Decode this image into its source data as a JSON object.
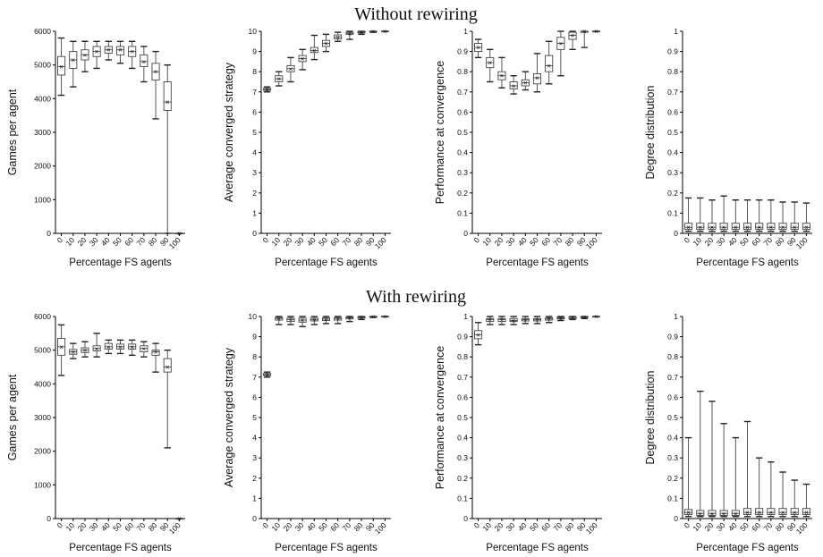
{
  "figure": {
    "section_titles": [
      "Without rewiring",
      "With rewiring"
    ]
  },
  "chart_data": [
    {
      "type": "box",
      "section": "Without rewiring",
      "xlabel": "Percentage FS agents",
      "ylabel": "Games per agent",
      "categories": [
        "0",
        "10",
        "20",
        "30",
        "40",
        "50",
        "60",
        "70",
        "80",
        "90",
        "100"
      ],
      "ylim": [
        0,
        6000
      ],
      "yticks": [
        "0",
        "1000",
        "2000",
        "3000",
        "4000",
        "5000",
        "6000"
      ],
      "boxes": [
        {
          "min": 4100,
          "q1": 4700,
          "median": 4950,
          "q3": 5250,
          "max": 5800,
          "mean": 4950
        },
        {
          "min": 4350,
          "q1": 4900,
          "median": 5150,
          "q3": 5400,
          "max": 5700,
          "mean": 5150
        },
        {
          "min": 4800,
          "q1": 5150,
          "median": 5300,
          "q3": 5450,
          "max": 5700,
          "mean": 5300
        },
        {
          "min": 4900,
          "q1": 5250,
          "median": 5400,
          "q3": 5550,
          "max": 5700,
          "mean": 5400
        },
        {
          "min": 5150,
          "q1": 5350,
          "median": 5450,
          "q3": 5550,
          "max": 5700,
          "mean": 5450
        },
        {
          "min": 5050,
          "q1": 5300,
          "median": 5450,
          "q3": 5550,
          "max": 5700,
          "mean": 5450
        },
        {
          "min": 4900,
          "q1": 5250,
          "median": 5400,
          "q3": 5550,
          "max": 5700,
          "mean": 5400
        },
        {
          "min": 4500,
          "q1": 4950,
          "median": 5100,
          "q3": 5300,
          "max": 5550,
          "mean": 5100
        },
        {
          "min": 3400,
          "q1": 4550,
          "median": 4800,
          "q3": 5050,
          "max": 5400,
          "mean": 4800
        },
        {
          "min": 0,
          "q1": 3650,
          "median": 3900,
          "q3": 4500,
          "max": 5000,
          "mean": 3900
        },
        {
          "min": 0,
          "q1": 0,
          "median": 0,
          "q3": 0,
          "max": 0,
          "mean": 0
        }
      ]
    },
    {
      "type": "box",
      "section": "Without rewiring",
      "xlabel": "Percentage FS agents",
      "ylabel": "Average converged strategy",
      "categories": [
        "0",
        "10",
        "20",
        "30",
        "40",
        "50",
        "60",
        "70",
        "80",
        "90",
        "100"
      ],
      "ylim": [
        0,
        10
      ],
      "yticks": [
        "0",
        "1",
        "2",
        "3",
        "4",
        "5",
        "6",
        "7",
        "8",
        "9",
        "10"
      ],
      "boxes": [
        {
          "min": 7.0,
          "q1": 7.08,
          "median": 7.12,
          "q3": 7.18,
          "max": 7.25,
          "mean": 7.12
        },
        {
          "min": 7.3,
          "q1": 7.5,
          "median": 7.65,
          "q3": 7.8,
          "max": 8.0,
          "mean": 7.65
        },
        {
          "min": 7.5,
          "q1": 8.0,
          "median": 8.15,
          "q3": 8.3,
          "max": 8.7,
          "mean": 8.15
        },
        {
          "min": 8.1,
          "q1": 8.5,
          "median": 8.65,
          "q3": 8.8,
          "max": 9.1,
          "mean": 8.65
        },
        {
          "min": 8.6,
          "q1": 8.95,
          "median": 9.05,
          "q3": 9.2,
          "max": 9.8,
          "mean": 9.05
        },
        {
          "min": 9.0,
          "q1": 9.25,
          "median": 9.4,
          "q3": 9.55,
          "max": 9.85,
          "mean": 9.4
        },
        {
          "min": 9.5,
          "q1": 9.62,
          "median": 9.72,
          "q3": 9.82,
          "max": 9.95,
          "mean": 9.72
        },
        {
          "min": 9.6,
          "q1": 9.85,
          "median": 9.9,
          "q3": 9.95,
          "max": 10.0,
          "mean": 9.9
        },
        {
          "min": 9.85,
          "q1": 9.92,
          "median": 9.95,
          "q3": 9.98,
          "max": 10.0,
          "mean": 9.95
        },
        {
          "min": 9.95,
          "q1": 9.97,
          "median": 9.99,
          "q3": 10.0,
          "max": 10.0,
          "mean": 9.99
        },
        {
          "min": 10.0,
          "q1": 10.0,
          "median": 10.0,
          "q3": 10.0,
          "max": 10.0,
          "mean": 10.0
        }
      ]
    },
    {
      "type": "box",
      "section": "Without rewiring",
      "xlabel": "Percentage FS agents",
      "ylabel": "Performance at convergence",
      "categories": [
        "0",
        "10",
        "20",
        "30",
        "40",
        "50",
        "60",
        "70",
        "80",
        "90",
        "100"
      ],
      "ylim": [
        0,
        1
      ],
      "yticks": [
        "0",
        "0.1",
        "0.2",
        "0.3",
        "0.4",
        "0.5",
        "0.6",
        "0.7",
        "0.8",
        "0.9",
        "1"
      ],
      "boxes": [
        {
          "min": 0.87,
          "q1": 0.9,
          "median": 0.92,
          "q3": 0.94,
          "max": 0.96,
          "mean": 0.92
        },
        {
          "min": 0.75,
          "q1": 0.82,
          "median": 0.845,
          "q3": 0.87,
          "max": 0.91,
          "mean": 0.845
        },
        {
          "min": 0.72,
          "q1": 0.76,
          "median": 0.78,
          "q3": 0.8,
          "max": 0.87,
          "mean": 0.78
        },
        {
          "min": 0.69,
          "q1": 0.715,
          "median": 0.73,
          "q3": 0.75,
          "max": 0.78,
          "mean": 0.73
        },
        {
          "min": 0.71,
          "q1": 0.73,
          "median": 0.745,
          "q3": 0.76,
          "max": 0.8,
          "mean": 0.745
        },
        {
          "min": 0.7,
          "q1": 0.74,
          "median": 0.77,
          "q3": 0.79,
          "max": 0.89,
          "mean": 0.77
        },
        {
          "min": 0.74,
          "q1": 0.8,
          "median": 0.83,
          "q3": 0.88,
          "max": 0.95,
          "mean": 0.83
        },
        {
          "min": 0.78,
          "q1": 0.91,
          "median": 0.94,
          "q3": 0.97,
          "max": 1.0,
          "mean": 0.94
        },
        {
          "min": 0.91,
          "q1": 0.96,
          "median": 0.98,
          "q3": 0.995,
          "max": 1.0,
          "mean": 0.98
        },
        {
          "min": 0.92,
          "q1": 0.995,
          "median": 1.0,
          "q3": 1.0,
          "max": 1.0,
          "mean": 1.0
        },
        {
          "min": 1.0,
          "q1": 1.0,
          "median": 1.0,
          "q3": 1.0,
          "max": 1.0,
          "mean": 1.0
        }
      ]
    },
    {
      "type": "box",
      "section": "Without rewiring",
      "xlabel": "Percentage FS agents",
      "ylabel": "Degree distribution",
      "categories": [
        "0",
        "10",
        "20",
        "30",
        "40",
        "50",
        "60",
        "70",
        "80",
        "90",
        "100"
      ],
      "ylim": [
        0,
        1
      ],
      "yticks": [
        "0",
        "0.1",
        "0.2",
        "0.3",
        "0.4",
        "0.5",
        "0.6",
        "0.7",
        "0.8",
        "0.9",
        "1"
      ],
      "boxes": [
        {
          "min": 0.01,
          "q1": 0.02,
          "median": 0.03,
          "q3": 0.05,
          "max": 0.175,
          "mean": 0.03
        },
        {
          "min": 0.01,
          "q1": 0.02,
          "median": 0.03,
          "q3": 0.05,
          "max": 0.175,
          "mean": 0.03
        },
        {
          "min": 0.01,
          "q1": 0.02,
          "median": 0.03,
          "q3": 0.05,
          "max": 0.165,
          "mean": 0.03
        },
        {
          "min": 0.01,
          "q1": 0.02,
          "median": 0.03,
          "q3": 0.05,
          "max": 0.185,
          "mean": 0.03
        },
        {
          "min": 0.01,
          "q1": 0.02,
          "median": 0.03,
          "q3": 0.05,
          "max": 0.165,
          "mean": 0.03
        },
        {
          "min": 0.01,
          "q1": 0.02,
          "median": 0.03,
          "q3": 0.05,
          "max": 0.165,
          "mean": 0.03
        },
        {
          "min": 0.01,
          "q1": 0.02,
          "median": 0.03,
          "q3": 0.05,
          "max": 0.165,
          "mean": 0.03
        },
        {
          "min": 0.01,
          "q1": 0.02,
          "median": 0.03,
          "q3": 0.05,
          "max": 0.165,
          "mean": 0.03
        },
        {
          "min": 0.01,
          "q1": 0.02,
          "median": 0.03,
          "q3": 0.05,
          "max": 0.155,
          "mean": 0.03
        },
        {
          "min": 0.01,
          "q1": 0.02,
          "median": 0.03,
          "q3": 0.05,
          "max": 0.155,
          "mean": 0.03
        },
        {
          "min": 0.01,
          "q1": 0.02,
          "median": 0.03,
          "q3": 0.05,
          "max": 0.15,
          "mean": 0.03
        }
      ]
    },
    {
      "type": "box",
      "section": "With rewiring",
      "xlabel": "Percentage FS agents",
      "ylabel": "Games per agent",
      "categories": [
        "0",
        "10",
        "20",
        "30",
        "40",
        "50",
        "60",
        "70",
        "80",
        "90",
        "100"
      ],
      "ylim": [
        0,
        6000
      ],
      "yticks": [
        "0",
        "1000",
        "2000",
        "3000",
        "4000",
        "5000",
        "6000"
      ],
      "boxes": [
        {
          "min": 4250,
          "q1": 4850,
          "median": 5100,
          "q3": 5350,
          "max": 5750,
          "mean": 5100
        },
        {
          "min": 4750,
          "q1": 4880,
          "median": 4950,
          "q3": 5020,
          "max": 5200,
          "mean": 4950
        },
        {
          "min": 4800,
          "q1": 4930,
          "median": 5000,
          "q3": 5070,
          "max": 5250,
          "mean": 5000
        },
        {
          "min": 4800,
          "q1": 4980,
          "median": 5050,
          "q3": 5130,
          "max": 5500,
          "mean": 5050
        },
        {
          "min": 4900,
          "q1": 5030,
          "median": 5100,
          "q3": 5200,
          "max": 5300,
          "mean": 5100
        },
        {
          "min": 4900,
          "q1": 5030,
          "median": 5100,
          "q3": 5180,
          "max": 5300,
          "mean": 5100
        },
        {
          "min": 4850,
          "q1": 5030,
          "median": 5100,
          "q3": 5180,
          "max": 5300,
          "mean": 5100
        },
        {
          "min": 4800,
          "q1": 4950,
          "median": 5050,
          "q3": 5130,
          "max": 5250,
          "mean": 5050
        },
        {
          "min": 4350,
          "q1": 4850,
          "median": 4950,
          "q3": 5000,
          "max": 5200,
          "mean": 4950
        },
        {
          "min": 2100,
          "q1": 4350,
          "median": 4500,
          "q3": 4750,
          "max": 5000,
          "mean": 4500
        },
        {
          "min": 0,
          "q1": 0,
          "median": 0,
          "q3": 0,
          "max": 0,
          "mean": 0
        }
      ]
    },
    {
      "type": "box",
      "section": "With rewiring",
      "xlabel": "Percentage FS agents",
      "ylabel": "Average converged strategy",
      "categories": [
        "0",
        "10",
        "20",
        "30",
        "40",
        "50",
        "60",
        "70",
        "80",
        "90",
        "100"
      ],
      "ylim": [
        0,
        10
      ],
      "yticks": [
        "0",
        "1",
        "2",
        "3",
        "4",
        "5",
        "6",
        "7",
        "8",
        "9",
        "10"
      ],
      "boxes": [
        {
          "min": 7.0,
          "q1": 7.08,
          "median": 7.12,
          "q3": 7.18,
          "max": 7.25,
          "mean": 7.12
        },
        {
          "min": 9.6,
          "q1": 9.82,
          "median": 9.9,
          "q3": 9.95,
          "max": 10.0,
          "mean": 9.9
        },
        {
          "min": 9.6,
          "q1": 9.75,
          "median": 9.85,
          "q3": 9.92,
          "max": 10.0,
          "mean": 9.85
        },
        {
          "min": 9.5,
          "q1": 9.72,
          "median": 9.82,
          "q3": 9.92,
          "max": 10.0,
          "mean": 9.82
        },
        {
          "min": 9.6,
          "q1": 9.78,
          "median": 9.85,
          "q3": 9.92,
          "max": 10.0,
          "mean": 9.85
        },
        {
          "min": 9.65,
          "q1": 9.8,
          "median": 9.87,
          "q3": 9.94,
          "max": 10.0,
          "mean": 9.87
        },
        {
          "min": 9.65,
          "q1": 9.82,
          "median": 9.9,
          "q3": 9.95,
          "max": 10.0,
          "mean": 9.9
        },
        {
          "min": 9.75,
          "q1": 9.88,
          "median": 9.93,
          "q3": 9.97,
          "max": 10.0,
          "mean": 9.93
        },
        {
          "min": 9.85,
          "q1": 9.92,
          "median": 9.96,
          "q3": 9.99,
          "max": 10.0,
          "mean": 9.96
        },
        {
          "min": 9.95,
          "q1": 9.97,
          "median": 9.99,
          "q3": 10.0,
          "max": 10.0,
          "mean": 9.99
        },
        {
          "min": 10.0,
          "q1": 10.0,
          "median": 10.0,
          "q3": 10.0,
          "max": 10.0,
          "mean": 10.0
        }
      ]
    },
    {
      "type": "box",
      "section": "With rewiring",
      "xlabel": "Percentage FS agents",
      "ylabel": "Performance at convergence",
      "categories": [
        "0",
        "10",
        "20",
        "30",
        "40",
        "50",
        "60",
        "70",
        "80",
        "90",
        "100"
      ],
      "ylim": [
        0,
        1
      ],
      "yticks": [
        "0",
        "0.1",
        "0.2",
        "0.3",
        "0.4",
        "0.5",
        "0.6",
        "0.7",
        "0.8",
        "0.9",
        "1"
      ],
      "boxes": [
        {
          "min": 0.86,
          "q1": 0.89,
          "median": 0.91,
          "q3": 0.93,
          "max": 0.97,
          "mean": 0.91
        },
        {
          "min": 0.96,
          "q1": 0.975,
          "median": 0.985,
          "q3": 0.99,
          "max": 1.0,
          "mean": 0.985
        },
        {
          "min": 0.96,
          "q1": 0.975,
          "median": 0.985,
          "q3": 0.99,
          "max": 1.0,
          "mean": 0.985
        },
        {
          "min": 0.96,
          "q1": 0.975,
          "median": 0.98,
          "q3": 0.99,
          "max": 1.0,
          "mean": 0.98
        },
        {
          "min": 0.965,
          "q1": 0.978,
          "median": 0.985,
          "q3": 0.99,
          "max": 1.0,
          "mean": 0.985
        },
        {
          "min": 0.965,
          "q1": 0.978,
          "median": 0.985,
          "q3": 0.99,
          "max": 1.0,
          "mean": 0.985
        },
        {
          "min": 0.97,
          "q1": 0.982,
          "median": 0.988,
          "q3": 0.993,
          "max": 1.0,
          "mean": 0.988
        },
        {
          "min": 0.98,
          "q1": 0.988,
          "median": 0.992,
          "q3": 0.996,
          "max": 1.0,
          "mean": 0.992
        },
        {
          "min": 0.985,
          "q1": 0.99,
          "median": 0.995,
          "q3": 0.998,
          "max": 1.0,
          "mean": 0.995
        },
        {
          "min": 0.99,
          "q1": 0.995,
          "median": 0.997,
          "q3": 1.0,
          "max": 1.0,
          "mean": 0.997
        },
        {
          "min": 1.0,
          "q1": 1.0,
          "median": 1.0,
          "q3": 1.0,
          "max": 1.0,
          "mean": 1.0
        }
      ]
    },
    {
      "type": "box",
      "section": "With rewiring",
      "xlabel": "Percentage FS agents",
      "ylabel": "Degree distribution",
      "categories": [
        "0",
        "10",
        "20",
        "30",
        "40",
        "50",
        "60",
        "70",
        "80",
        "90",
        "100"
      ],
      "ylim": [
        0,
        1
      ],
      "yticks": [
        "0",
        "0.1",
        "0.2",
        "0.3",
        "0.4",
        "0.5",
        "0.6",
        "0.7",
        "0.8",
        "0.9",
        "1"
      ],
      "boxes": [
        {
          "min": 0.01,
          "q1": 0.02,
          "median": 0.03,
          "q3": 0.045,
          "max": 0.4,
          "mean": 0.03
        },
        {
          "min": 0.01,
          "q1": 0.015,
          "median": 0.025,
          "q3": 0.04,
          "max": 0.63,
          "mean": 0.025
        },
        {
          "min": 0.01,
          "q1": 0.015,
          "median": 0.025,
          "q3": 0.04,
          "max": 0.58,
          "mean": 0.025
        },
        {
          "min": 0.01,
          "q1": 0.015,
          "median": 0.025,
          "q3": 0.04,
          "max": 0.47,
          "mean": 0.025
        },
        {
          "min": 0.01,
          "q1": 0.015,
          "median": 0.025,
          "q3": 0.04,
          "max": 0.4,
          "mean": 0.025
        },
        {
          "min": 0.01,
          "q1": 0.02,
          "median": 0.03,
          "q3": 0.05,
          "max": 0.48,
          "mean": 0.03
        },
        {
          "min": 0.01,
          "q1": 0.02,
          "median": 0.03,
          "q3": 0.05,
          "max": 0.3,
          "mean": 0.03
        },
        {
          "min": 0.01,
          "q1": 0.02,
          "median": 0.03,
          "q3": 0.05,
          "max": 0.28,
          "mean": 0.03
        },
        {
          "min": 0.01,
          "q1": 0.02,
          "median": 0.03,
          "q3": 0.05,
          "max": 0.23,
          "mean": 0.03
        },
        {
          "min": 0.01,
          "q1": 0.02,
          "median": 0.03,
          "q3": 0.05,
          "max": 0.19,
          "mean": 0.03
        },
        {
          "min": 0.01,
          "q1": 0.02,
          "median": 0.03,
          "q3": 0.05,
          "max": 0.17,
          "mean": 0.03
        }
      ]
    }
  ]
}
